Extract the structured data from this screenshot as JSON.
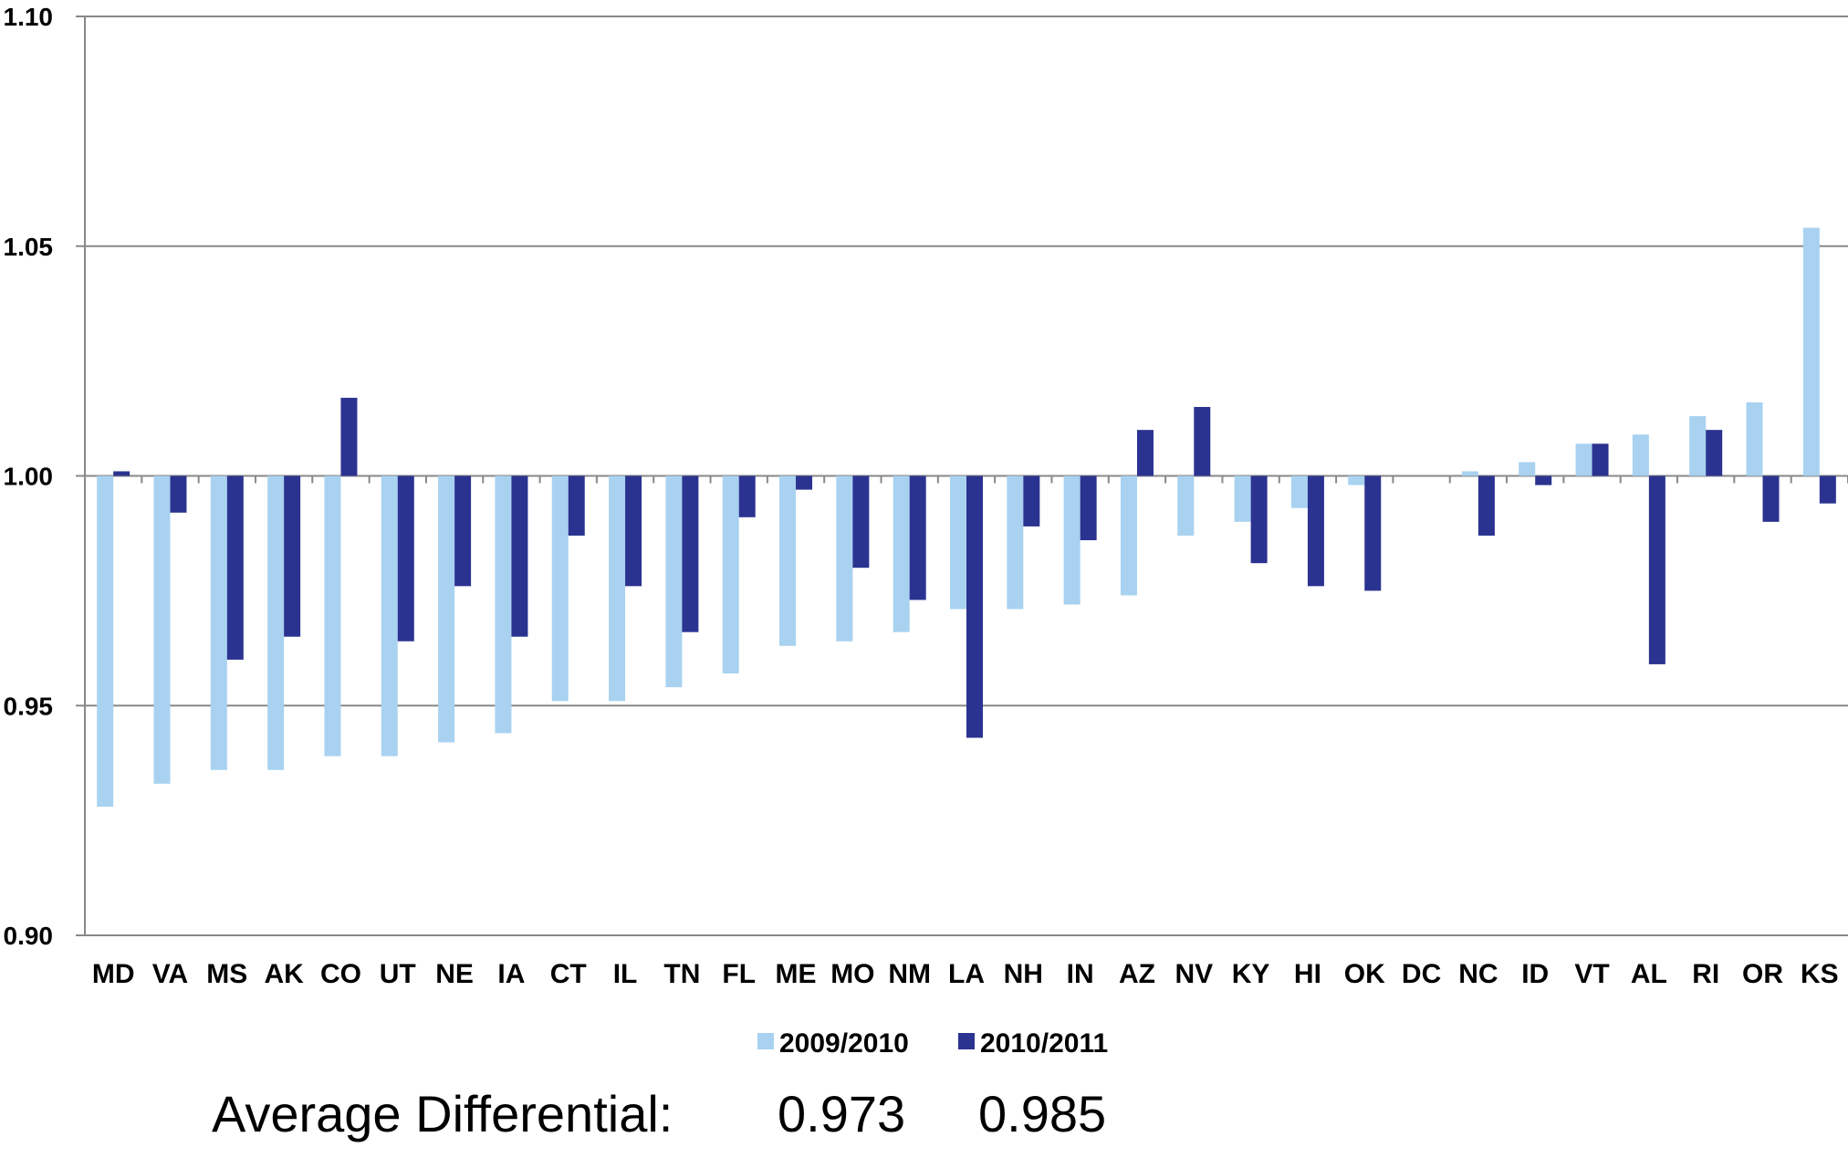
{
  "chart_data": {
    "type": "bar",
    "categories": [
      "MD",
      "VA",
      "MS",
      "AK",
      "CO",
      "UT",
      "NE",
      "IA",
      "CT",
      "IL",
      "TN",
      "FL",
      "ME",
      "MO",
      "NM",
      "LA",
      "NH",
      "IN",
      "AZ",
      "NV",
      "KY",
      "HI",
      "OK",
      "DC",
      "NC",
      "ID",
      "VT",
      "AL",
      "RI",
      "OR",
      "KS"
    ],
    "series": [
      {
        "name": "2009/2010",
        "color": "#a8d2f0",
        "values": [
          0.928,
          0.933,
          0.936,
          0.936,
          0.939,
          0.939,
          0.942,
          0.944,
          0.951,
          0.951,
          0.954,
          0.957,
          0.963,
          0.964,
          0.966,
          0.971,
          0.971,
          0.972,
          0.974,
          0.987,
          0.99,
          0.993,
          0.998,
          1.0,
          1.001,
          1.003,
          1.007,
          1.009,
          1.013,
          1.016,
          1.054
        ]
      },
      {
        "name": "2010/2011",
        "color": "#2b3391",
        "values": [
          1.001,
          0.992,
          0.96,
          0.965,
          1.017,
          0.964,
          0.976,
          0.965,
          0.987,
          0.976,
          0.966,
          0.991,
          0.997,
          0.98,
          0.973,
          0.943,
          0.989,
          0.986,
          1.01,
          1.015,
          0.981,
          0.976,
          0.975,
          1.0,
          0.987,
          0.998,
          1.007,
          0.959,
          1.01,
          0.99,
          0.994
        ]
      }
    ],
    "baseline": 1.0,
    "ylim": [
      0.9,
      1.1
    ],
    "yticks": [
      "0.90",
      "0.95",
      "1.00",
      "1.05",
      "1.10"
    ],
    "grid": true,
    "legend_position": "bottom-center",
    "title": "",
    "xlabel": "",
    "ylabel": ""
  },
  "summary": {
    "label": "Average Differential:",
    "values": [
      "0.973",
      "0.985"
    ]
  }
}
